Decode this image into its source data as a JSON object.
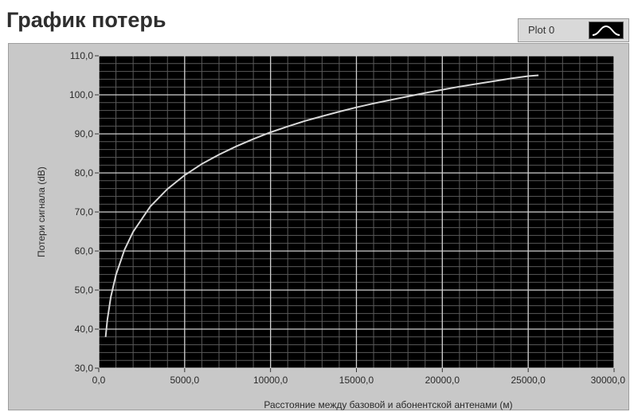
{
  "header": {
    "title": "График потерь"
  },
  "legend": {
    "label": "Plot 0",
    "icon": "line-plot-icon"
  },
  "colors": {
    "plot_background": "#000000",
    "major_grid": "#d0d0d0",
    "minor_grid": "#5a5a5a",
    "series": "#d8d8d8",
    "frame": "#c8c8c8"
  },
  "chart_data": {
    "type": "line",
    "title": "График потерь",
    "xlabel": "Расстояние  между базовой и абонентской антенами (м)",
    "ylabel": "Потери сигнала (dB)",
    "xlim": [
      0,
      30000
    ],
    "ylim": [
      30,
      110
    ],
    "grid": true,
    "legend_position": "top-right",
    "x_ticks": [
      "0,0",
      "5000,0",
      "10000,0",
      "15000,0",
      "20000,0",
      "25000,0",
      "30000,0"
    ],
    "y_ticks": [
      "30,0",
      "40,0",
      "50,0",
      "60,0",
      "70,0",
      "80,0",
      "90,0",
      "100,0",
      "110,0"
    ],
    "series": [
      {
        "name": "Plot 0",
        "x": [
          400,
          500,
          700,
          1000,
          1500,
          2000,
          3000,
          4000,
          5000,
          6000,
          7000,
          8000,
          9000,
          10000,
          11000,
          12000,
          13000,
          14000,
          15000,
          16000,
          17000,
          18000,
          19000,
          20000,
          21000,
          22000,
          23000,
          24000,
          25000,
          25600
        ],
        "y": [
          38.0,
          42.4,
          48.2,
          53.9,
          60.3,
          64.9,
          71.4,
          75.9,
          79.4,
          82.3,
          84.7,
          86.8,
          88.7,
          90.4,
          91.9,
          93.3,
          94.5,
          95.7,
          96.8,
          97.8,
          98.7,
          99.6,
          100.5,
          101.3,
          102.1,
          102.8,
          103.5,
          104.2,
          104.8,
          105.0
        ]
      }
    ]
  }
}
